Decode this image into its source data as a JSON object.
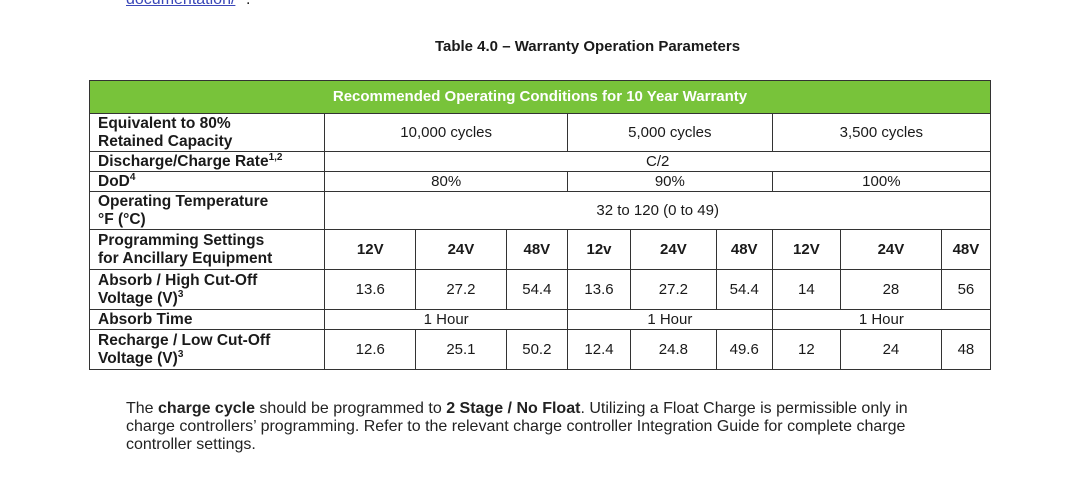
{
  "top": {
    "link_text": "documentation/",
    "period": "."
  },
  "caption": "Table 4.0 – Warranty Operation Parameters",
  "table": {
    "header": "Recommended Operating Conditions for 10 Year Warranty",
    "rows": {
      "capacity": {
        "label_line1": "Equivalent to 80%",
        "label_line2": "Retained Capacity",
        "g1": "10,000 cycles",
        "g2": "5,000 cycles",
        "g3": "3,500 cycles"
      },
      "rate": {
        "label": "Discharge/Charge Rate",
        "label_sup": "1,2",
        "value": "C/2"
      },
      "dod": {
        "label": "DoD",
        "label_sup": "4",
        "g1": "80%",
        "g2": "90%",
        "g3": "100%"
      },
      "temp": {
        "label_line1": "Operating Temperature",
        "label_line2": "°F (°C)",
        "value": "32 to 120 (0 to 49)"
      },
      "programming": {
        "label_line1": "Programming Settings",
        "label_line2": "for Ancillary Equipment",
        "cells": [
          "12V",
          "24V",
          "48V",
          "12v",
          "24V",
          "48V",
          "12V",
          "24V",
          "48V"
        ]
      },
      "absorb": {
        "label_line1": "Absorb / High Cut-Off",
        "label_line2": "Voltage (V)",
        "label_sup": "3",
        "cells": [
          "13.6",
          "27.2",
          "54.4",
          "13.6",
          "27.2",
          "54.4",
          "14",
          "28",
          "56"
        ]
      },
      "absorb_time": {
        "label": "Absorb Time",
        "g1": "1 Hour",
        "g2": "1 Hour",
        "g3": "1 Hour"
      },
      "recharge": {
        "label_line1": "Recharge / Low Cut-Off",
        "label_line2": "Voltage (V)",
        "label_sup": "3",
        "cells": [
          "12.6",
          "25.1",
          "50.2",
          "12.4",
          "24.8",
          "49.6",
          "12",
          "24",
          "48"
        ]
      }
    }
  },
  "note": {
    "t1": "The ",
    "b1": "charge cycle",
    "t2": " should be programmed to ",
    "b2": "2 Stage / No Float",
    "t3": ". Utilizing a Float Charge is permissible only in charge controllers’ programming. Refer to the relevant charge controller Integration Guide for complete charge controller settings."
  }
}
